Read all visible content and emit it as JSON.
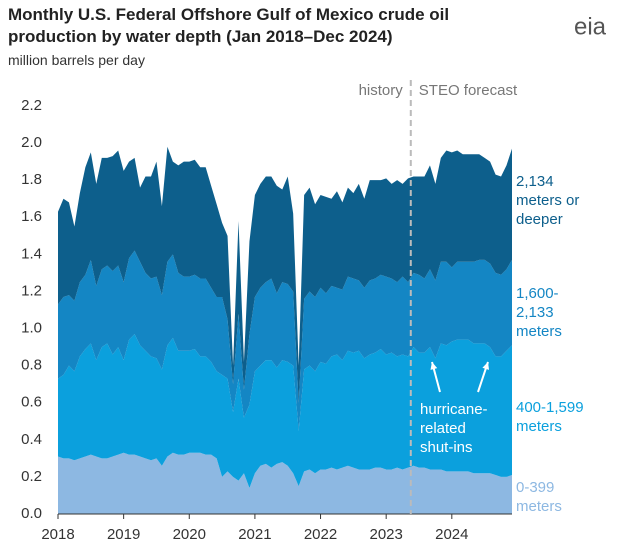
{
  "chart_data": {
    "type": "stacked-area",
    "title": "Monthly U.S. Federal Offshore Gulf of Mexico crude oil production by water depth (Jan 2018–Dec 2024)",
    "subtitle": "million barrels per day",
    "logo": "eia",
    "x": [
      2018,
      2018.083,
      2018.167,
      2018.25,
      2018.333,
      2018.417,
      2018.5,
      2018.583,
      2018.667,
      2018.75,
      2018.833,
      2018.917,
      2019,
      2019.083,
      2019.167,
      2019.25,
      2019.333,
      2019.417,
      2019.5,
      2019.583,
      2019.667,
      2019.75,
      2019.833,
      2019.917,
      2020,
      2020.083,
      2020.167,
      2020.25,
      2020.333,
      2020.417,
      2020.5,
      2020.583,
      2020.667,
      2020.75,
      2020.833,
      2020.917,
      2021,
      2021.083,
      2021.167,
      2021.25,
      2021.333,
      2021.417,
      2021.5,
      2021.583,
      2021.667,
      2021.75,
      2021.833,
      2021.917,
      2022,
      2022.083,
      2022.167,
      2022.25,
      2022.333,
      2022.417,
      2022.5,
      2022.583,
      2022.667,
      2022.75,
      2022.833,
      2022.917,
      2023,
      2023.083,
      2023.167,
      2023.25,
      2023.333,
      2023.417,
      2023.5,
      2023.583,
      2023.667,
      2023.75,
      2023.833,
      2023.917,
      2024,
      2024.083,
      2024.167,
      2024.25,
      2024.333,
      2024.417,
      2024.5,
      2024.583,
      2024.667,
      2024.75,
      2024.833,
      2024.917
    ],
    "series": [
      {
        "name": "0-399 meters",
        "color": "#8db8e2",
        "values": [
          0.31,
          0.3,
          0.3,
          0.29,
          0.3,
          0.31,
          0.32,
          0.31,
          0.3,
          0.3,
          0.31,
          0.32,
          0.33,
          0.32,
          0.32,
          0.31,
          0.3,
          0.29,
          0.3,
          0.26,
          0.31,
          0.33,
          0.32,
          0.32,
          0.33,
          0.33,
          0.33,
          0.32,
          0.32,
          0.3,
          0.2,
          0.23,
          0.2,
          0.18,
          0.22,
          0.14,
          0.22,
          0.26,
          0.27,
          0.25,
          0.27,
          0.28,
          0.26,
          0.22,
          0.15,
          0.23,
          0.24,
          0.22,
          0.24,
          0.24,
          0.25,
          0.24,
          0.25,
          0.26,
          0.25,
          0.24,
          0.24,
          0.24,
          0.25,
          0.25,
          0.24,
          0.24,
          0.25,
          0.24,
          0.25,
          0.26,
          0.25,
          0.25,
          0.24,
          0.24,
          0.24,
          0.23,
          0.23,
          0.23,
          0.23,
          0.23,
          0.22,
          0.22,
          0.22,
          0.22,
          0.21,
          0.2,
          0.2,
          0.21
        ]
      },
      {
        "name": "400-1,599 meters",
        "color": "#0ba0dd",
        "values": [
          0.42,
          0.45,
          0.5,
          0.48,
          0.55,
          0.58,
          0.6,
          0.52,
          0.6,
          0.62,
          0.55,
          0.58,
          0.5,
          0.62,
          0.65,
          0.6,
          0.58,
          0.56,
          0.54,
          0.52,
          0.6,
          0.62,
          0.56,
          0.56,
          0.55,
          0.56,
          0.52,
          0.53,
          0.5,
          0.47,
          0.55,
          0.5,
          0.35,
          0.55,
          0.3,
          0.45,
          0.55,
          0.54,
          0.56,
          0.58,
          0.52,
          0.55,
          0.56,
          0.58,
          0.3,
          0.55,
          0.56,
          0.55,
          0.58,
          0.57,
          0.6,
          0.62,
          0.58,
          0.62,
          0.62,
          0.64,
          0.6,
          0.62,
          0.62,
          0.64,
          0.62,
          0.63,
          0.6,
          0.62,
          0.6,
          0.64,
          0.62,
          0.62,
          0.66,
          0.6,
          0.68,
          0.68,
          0.7,
          0.71,
          0.71,
          0.71,
          0.7,
          0.7,
          0.7,
          0.68,
          0.64,
          0.65,
          0.68,
          0.7
        ]
      },
      {
        "name": "1,600-2,133 meters",
        "color": "#1486c4",
        "values": [
          0.4,
          0.42,
          0.38,
          0.38,
          0.4,
          0.4,
          0.45,
          0.4,
          0.42,
          0.42,
          0.45,
          0.44,
          0.42,
          0.44,
          0.45,
          0.45,
          0.42,
          0.42,
          0.44,
          0.4,
          0.45,
          0.45,
          0.42,
          0.4,
          0.4,
          0.4,
          0.42,
          0.42,
          0.4,
          0.4,
          0.42,
          0.32,
          0.15,
          0.35,
          0.15,
          0.38,
          0.4,
          0.42,
          0.42,
          0.44,
          0.4,
          0.42,
          0.42,
          0.4,
          0.15,
          0.38,
          0.4,
          0.4,
          0.4,
          0.38,
          0.38,
          0.36,
          0.38,
          0.4,
          0.4,
          0.38,
          0.38,
          0.4,
          0.4,
          0.4,
          0.42,
          0.4,
          0.4,
          0.42,
          0.4,
          0.4,
          0.42,
          0.4,
          0.42,
          0.42,
          0.44,
          0.45,
          0.4,
          0.42,
          0.42,
          0.42,
          0.44,
          0.45,
          0.45,
          0.45,
          0.45,
          0.44,
          0.44,
          0.46
        ]
      },
      {
        "name": "2,134 meters or deeper",
        "color": "#0d5f8c",
        "values": [
          0.5,
          0.53,
          0.5,
          0.4,
          0.48,
          0.58,
          0.58,
          0.55,
          0.6,
          0.58,
          0.62,
          0.62,
          0.6,
          0.52,
          0.5,
          0.4,
          0.52,
          0.55,
          0.62,
          0.48,
          0.62,
          0.5,
          0.58,
          0.62,
          0.62,
          0.62,
          0.6,
          0.6,
          0.55,
          0.5,
          0.4,
          0.45,
          0.1,
          0.5,
          0.15,
          0.5,
          0.55,
          0.56,
          0.57,
          0.55,
          0.58,
          0.5,
          0.58,
          0.42,
          0.2,
          0.56,
          0.56,
          0.5,
          0.5,
          0.52,
          0.47,
          0.52,
          0.47,
          0.48,
          0.46,
          0.52,
          0.48,
          0.54,
          0.53,
          0.51,
          0.53,
          0.51,
          0.55,
          0.5,
          0.56,
          0.52,
          0.53,
          0.55,
          0.56,
          0.52,
          0.56,
          0.6,
          0.62,
          0.6,
          0.58,
          0.58,
          0.58,
          0.57,
          0.55,
          0.55,
          0.53,
          0.53,
          0.56,
          0.6
        ]
      }
    ],
    "xlim": [
      2018,
      2024.917
    ],
    "xticks": [
      2018,
      2019,
      2020,
      2021,
      2022,
      2023,
      2024
    ],
    "ylim": [
      0,
      2.2
    ],
    "yticks": [
      {
        "value": 0,
        "label": "0.0"
      },
      0.2,
      0.4,
      0.6,
      0.8,
      {
        "value": 1,
        "label": "1.0"
      },
      1.2,
      1.4,
      1.6,
      1.8,
      {
        "value": 2,
        "label": "2.0"
      },
      2.2
    ],
    "divider": {
      "x": 2023.375,
      "left_label": "history",
      "right_label": "STEO forecast"
    },
    "annotation": "hurricane-related shut-ins"
  }
}
